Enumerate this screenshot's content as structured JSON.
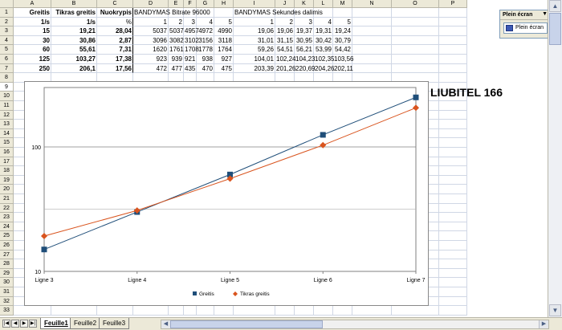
{
  "columns": [
    "A",
    "B",
    "C",
    "D",
    "E",
    "F",
    "G",
    "H",
    "I",
    "J",
    "K",
    "L",
    "M",
    "N",
    "O",
    "P"
  ],
  "rows": [
    "1",
    "2",
    "3",
    "4",
    "5",
    "6",
    "7",
    "8",
    "9",
    "10",
    "11",
    "12",
    "13",
    "14",
    "15",
    "16",
    "17",
    "18",
    "19",
    "20",
    "21",
    "22",
    "23",
    "24",
    "25",
    "26",
    "27",
    "28",
    "29",
    "30",
    "31",
    "32",
    "33"
  ],
  "sheet": {
    "headers": {
      "A1": "Greitis",
      "B1": "Tikras greitis",
      "C1": "Nuokrypis",
      "D1": "BANDYMAS Bitrate 96000",
      "I1": "BANDYMAS Sekundes dalimis",
      "A2": "1/s",
      "B2": "1/s",
      "C2": "%"
    },
    "trial_numbers": [
      "1",
      "2",
      "3",
      "4",
      "5"
    ],
    "data_rows": [
      {
        "a": "15",
        "b": "19,21",
        "c": "28,04",
        "d": [
          "5037",
          "5037",
          "4957",
          "4972",
          "4990"
        ],
        "i": [
          "19,06",
          "19,06",
          "19,37",
          "19,31",
          "19,24"
        ]
      },
      {
        "a": "30",
        "b": "30,86",
        "c": "2,87",
        "d": [
          "3096",
          "3082",
          "3102",
          "3156",
          "3118"
        ],
        "i": [
          "31,01",
          "31,15",
          "30,95",
          "30,42",
          "30,79"
        ]
      },
      {
        "a": "60",
        "b": "55,61",
        "c": "7,31",
        "d": [
          "1620",
          "1761",
          "1708",
          "1778",
          "1764"
        ],
        "i": [
          "59,26",
          "54,51",
          "56,21",
          "53,99",
          "54,42"
        ]
      },
      {
        "a": "125",
        "b": "103,27",
        "c": "17,38",
        "d": [
          "923",
          "939",
          "921",
          "938",
          "927"
        ],
        "i": [
          "104,01",
          "102,24",
          "104,23",
          "102,35",
          "103,56"
        ]
      },
      {
        "a": "250",
        "b": "206,1",
        "c": "17,56",
        "d": [
          "472",
          "477",
          "435",
          "470",
          "475"
        ],
        "i": [
          "203,39",
          "201,26",
          "220,69",
          "204,26",
          "202,11"
        ]
      }
    ]
  },
  "chart_data": {
    "type": "line",
    "title": "LIUBITEL 166",
    "y_scale": "log",
    "ylim": [
      10,
      300
    ],
    "ytick_labels": [
      "10",
      "100"
    ],
    "categories": [
      "Ligne 3",
      "Ligne 4",
      "Ligne 5",
      "Ligne 6",
      "Ligne 7"
    ],
    "series": [
      {
        "name": "Greitis",
        "values": [
          15,
          30,
          60,
          125,
          250
        ],
        "color": "#1f4e79",
        "marker": "square"
      },
      {
        "name": "Tikras greitis",
        "values": [
          19.21,
          30.86,
          55.61,
          103.27,
          206.1
        ],
        "color": "#d9541e",
        "marker": "diamond"
      }
    ],
    "legend": "bottom",
    "grid": true
  },
  "plein_ecran": {
    "title": "Plein écran",
    "button": "Plein écran"
  },
  "tabs": [
    "Feuille1",
    "Feuille2",
    "Feuille3"
  ],
  "nav_icons": [
    "first-sheet-icon",
    "prev-sheet-icon",
    "next-sheet-icon",
    "last-sheet-icon"
  ]
}
